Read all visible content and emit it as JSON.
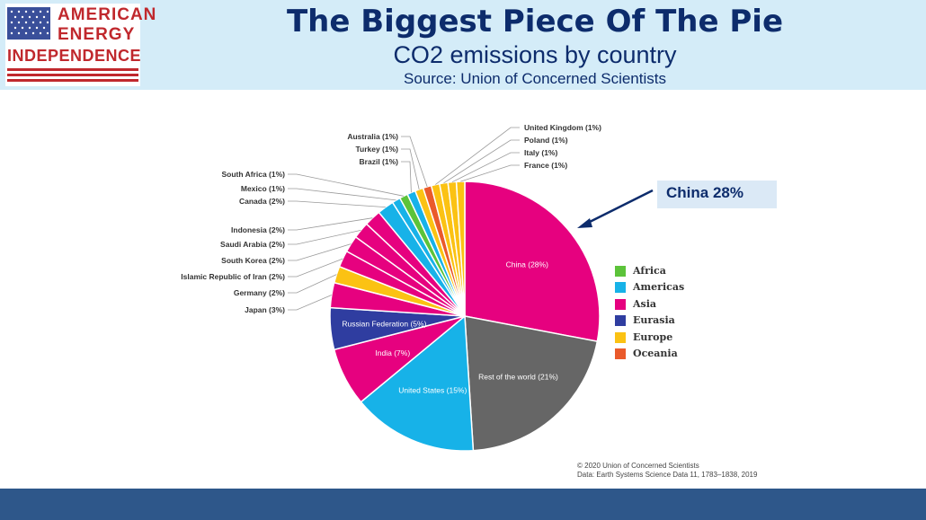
{
  "header": {
    "logo_line1": "AMERICAN",
    "logo_line2": "ENERGY",
    "logo_line3": "INDEPENDENCE",
    "title": "The Biggest Piece Of The Pie",
    "subtitle": "CO2 emissions by country",
    "source": "Source: Union of Concerned Scientists"
  },
  "callout": {
    "text": "China 28%"
  },
  "legend": [
    {
      "label": "Africa",
      "color": "#5cc33a"
    },
    {
      "label": "Americas",
      "color": "#17b2e8"
    },
    {
      "label": "Asia",
      "color": "#e6017f"
    },
    {
      "label": "Eurasia",
      "color": "#2f3da0"
    },
    {
      "label": "Europe",
      "color": "#fbc213"
    },
    {
      "label": "Oceania",
      "color": "#ea5a2b"
    }
  ],
  "copyright": {
    "line1": "© 2020 Union of Concerned Scientists",
    "line2": "Data: Earth Systems Science Data 11, 1783–1838, 2019"
  },
  "chart_data": {
    "type": "pie",
    "title": "CO2 emissions by country",
    "slices": [
      {
        "label": "China (28%)",
        "value": 28,
        "color": "#e6017f",
        "labelInside": true
      },
      {
        "label": "Rest of the world (21%)",
        "value": 21,
        "color": "#666666",
        "labelInside": true
      },
      {
        "label": "United States (15%)",
        "value": 15,
        "color": "#17b2e8",
        "labelInside": true
      },
      {
        "label": "India (7%)",
        "value": 7,
        "color": "#e6017f",
        "labelInside": true
      },
      {
        "label": "Russian Federation (5%)",
        "value": 5,
        "color": "#2f3da0",
        "labelInside": true
      },
      {
        "label": "Japan (3%)",
        "value": 3,
        "color": "#e6017f",
        "labelInside": false
      },
      {
        "label": "Germany (2%)",
        "value": 2,
        "color": "#fbc213",
        "labelInside": false
      },
      {
        "label": "Islamic Republic of Iran (2%)",
        "value": 2,
        "color": "#e6017f",
        "labelInside": false
      },
      {
        "label": "South Korea (2%)",
        "value": 2,
        "color": "#e6017f",
        "labelInside": false
      },
      {
        "label": "Saudi Arabia (2%)",
        "value": 2,
        "color": "#e6017f",
        "labelInside": false
      },
      {
        "label": "Indonesia (2%)",
        "value": 2,
        "color": "#e6017f",
        "labelInside": false
      },
      {
        "label": "Canada (2%)",
        "value": 2,
        "color": "#17b2e8",
        "labelInside": false
      },
      {
        "label": "Mexico (1%)",
        "value": 1,
        "color": "#17b2e8",
        "labelInside": false
      },
      {
        "label": "South Africa (1%)",
        "value": 1,
        "color": "#5cc33a",
        "labelInside": false
      },
      {
        "label": "Brazil (1%)",
        "value": 1,
        "color": "#17b2e8",
        "labelInside": false
      },
      {
        "label": "Turkey (1%)",
        "value": 1,
        "color": "#fbc213",
        "labelInside": false
      },
      {
        "label": "Australia (1%)",
        "value": 1,
        "color": "#ea5a2b",
        "labelInside": false
      },
      {
        "label": "United Kingdom (1%)",
        "value": 1,
        "color": "#fbc213",
        "labelInside": false
      },
      {
        "label": "Poland (1%)",
        "value": 1,
        "color": "#fbc213",
        "labelInside": false
      },
      {
        "label": "Italy (1%)",
        "value": 1,
        "color": "#fbc213",
        "labelInside": false
      },
      {
        "label": "France (1%)",
        "value": 1,
        "color": "#fbc213",
        "labelInside": false
      }
    ]
  }
}
